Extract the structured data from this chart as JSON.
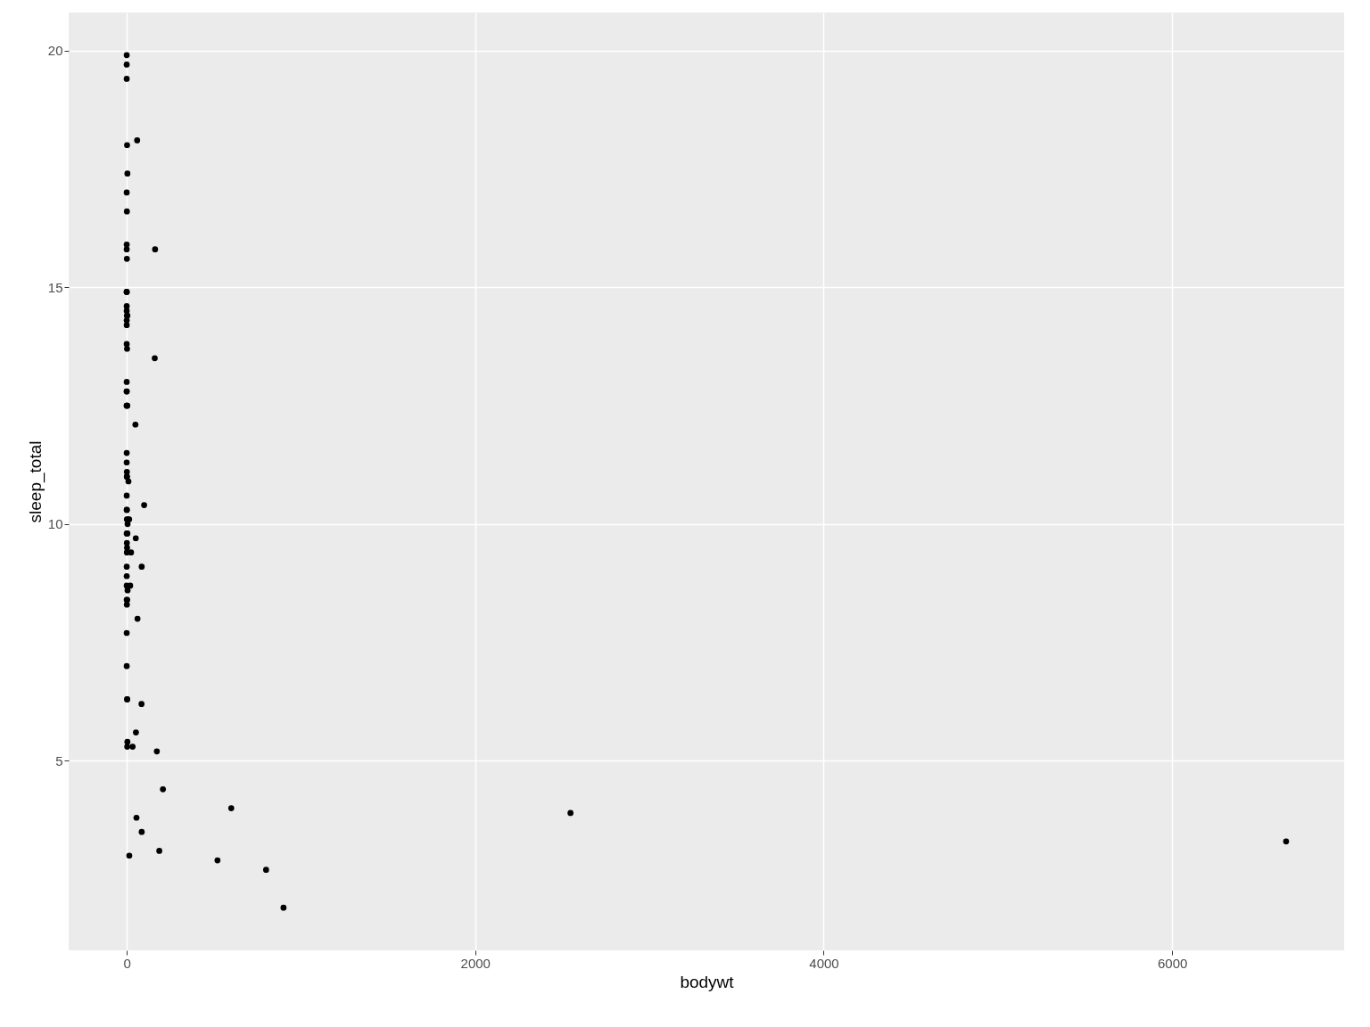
{
  "chart_data": {
    "type": "scatter",
    "xlabel": "bodywt",
    "ylabel": "sleep_total",
    "x": [
      50,
      0,
      1,
      0,
      600,
      4,
      20,
      0,
      14,
      15,
      34,
      1,
      5,
      0,
      0,
      1,
      0,
      4,
      3,
      2,
      2547,
      0,
      521,
      187,
      1,
      10,
      0,
      3,
      0,
      900,
      800,
      85,
      3,
      62,
      2,
      6654,
      0,
      7,
      0,
      0,
      0,
      0,
      0,
      0,
      1,
      0,
      0,
      3,
      56,
      52,
      163,
      100,
      161,
      25,
      1,
      1,
      0,
      2,
      86,
      53,
      1,
      60,
      4,
      0,
      0,
      1,
      0,
      0,
      0,
      1,
      0,
      0,
      0,
      86,
      5,
      0,
      208,
      1,
      0,
      173,
      2,
      3,
      4
    ],
    "series": [
      {
        "color": "#000000",
        "values": [
          12.1,
          17.0,
          14.4,
          14.9,
          4.0,
          14.4,
          8.7,
          7.0,
          10.1,
          3.0,
          5.3,
          9.4,
          10.0,
          12.5,
          10.3,
          8.3,
          9.1,
          17.4,
          5.3,
          18.0,
          3.9,
          19.7,
          2.9,
          3.1,
          10.1,
          10.9,
          14.9,
          12.5,
          9.8,
          1.9,
          2.7,
          6.2,
          6.3,
          8.0,
          9.5,
          3.3,
          19.4,
          10.1,
          14.2,
          14.3,
          12.8,
          12.5,
          19.9,
          14.6,
          11.0,
          7.7,
          14.5,
          8.4,
          3.8,
          9.7,
          15.8,
          10.4,
          13.5,
          9.4,
          10.3,
          11.0,
          11.5,
          13.7,
          3.5,
          5.6,
          11.1,
          18.1,
          5.4,
          13.0,
          8.7,
          9.6,
          8.4,
          11.3,
          10.6,
          16.6,
          13.8,
          15.9,
          12.8,
          9.1,
          8.6,
          15.8,
          4.4,
          15.6,
          8.9,
          5.2,
          6.3,
          12.5,
          9.8
        ]
      }
    ],
    "xlim": [
      -333,
      6987
    ],
    "ylim": [
      1.0,
      20.8
    ],
    "xticks": [
      0,
      2000,
      4000,
      6000
    ],
    "yticks": [
      5,
      10,
      15,
      20
    ],
    "grid": true,
    "marker": "circle"
  }
}
